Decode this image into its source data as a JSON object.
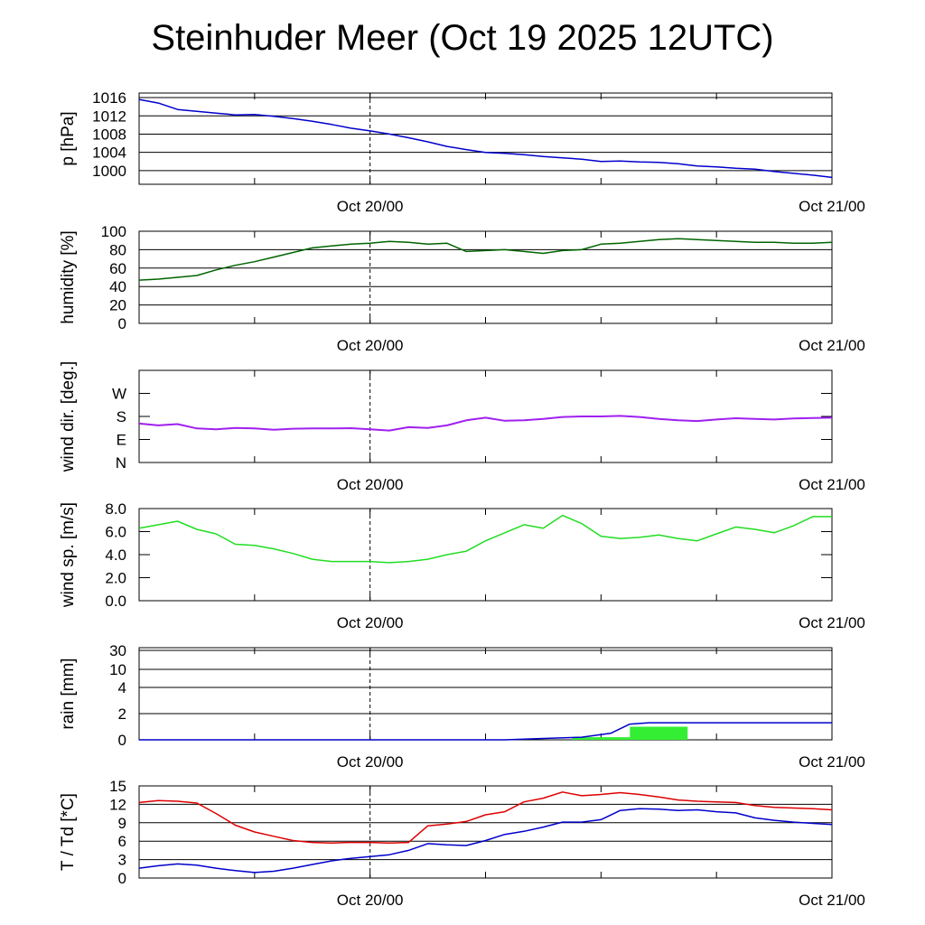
{
  "title": "Steinhuder Meer (Oct 19 2025 12UTC)",
  "colors": {
    "pressure": "#0000cc",
    "humidity": "#006400",
    "wind_dir": "#a020f0",
    "wind_speed": "#22dd22",
    "rain_acc": "#0000cc",
    "rain_bar": "#33ee33",
    "temperature": "#dd0000",
    "dewpoint": "#0000cc"
  },
  "chart_data": [
    {
      "type": "line",
      "ylabel": "p [hPa]",
      "x_tick_labels": [
        "Oct 20/00",
        "Oct 21/00"
      ],
      "y_ticks": [
        1000,
        1004,
        1008,
        1012,
        1016
      ],
      "y_tick_labels": [
        "1000",
        "1004",
        "1008",
        "1012",
        "1016"
      ],
      "ylim": [
        997,
        1017
      ],
      "grid": true,
      "series": [
        {
          "x": [
            0,
            1,
            2,
            3,
            4,
            5,
            6,
            7,
            8,
            9,
            10,
            11,
            12,
            13,
            14,
            15,
            16,
            17,
            18,
            19,
            20,
            21,
            22,
            23,
            24,
            25,
            26,
            27,
            28,
            29,
            30,
            31,
            32,
            33,
            34,
            35,
            36
          ],
          "y": [
            1015.6,
            1014.8,
            1013.4,
            1013.0,
            1012.6,
            1012.2,
            1012.3,
            1011.9,
            1011.4,
            1010.8,
            1010.1,
            1009.3,
            1008.7,
            1008.0,
            1007.2,
            1006.3,
            1005.3,
            1004.6,
            1004.0,
            1003.8,
            1003.5,
            1003.1,
            1002.8,
            1002.5,
            1002.0,
            1002.1,
            1001.9,
            1001.8,
            1001.5,
            1001.0,
            1000.8,
            1000.5,
            1000.3,
            999.8,
            999.4,
            999.0,
            998.5
          ]
        }
      ]
    },
    {
      "type": "line",
      "ylabel": "humidity [%]",
      "x_tick_labels": [
        "Oct 20/00",
        "Oct 21/00"
      ],
      "y_ticks": [
        0,
        20,
        40,
        60,
        80,
        100
      ],
      "y_tick_labels": [
        "0",
        "20",
        "40",
        "60",
        "80",
        "100"
      ],
      "ylim": [
        0,
        100
      ],
      "grid": true,
      "series": [
        {
          "x": [
            0,
            1,
            2,
            3,
            4,
            5,
            6,
            7,
            8,
            9,
            10,
            11,
            12,
            13,
            14,
            15,
            16,
            17,
            18,
            19,
            20,
            21,
            22,
            23,
            24,
            25,
            26,
            27,
            28,
            29,
            30,
            31,
            32,
            33,
            34,
            35,
            36
          ],
          "y": [
            47,
            48,
            50,
            52,
            58,
            63,
            67,
            72,
            77,
            82,
            84,
            86,
            87,
            89,
            88,
            86,
            87,
            78,
            79,
            80,
            78,
            76,
            79,
            80,
            86,
            87,
            89,
            91,
            92,
            91,
            90,
            89,
            88,
            88,
            87,
            87,
            88
          ]
        }
      ]
    },
    {
      "type": "line",
      "ylabel": "wind dir. [deg.]",
      "x_tick_labels": [
        "Oct 20/00",
        "Oct 21/00"
      ],
      "y_ticks": [
        0,
        90,
        180,
        270
      ],
      "y_tick_labels": [
        "N",
        "E",
        "S",
        "W"
      ],
      "ylim": [
        0,
        360
      ],
      "grid": false,
      "series": [
        {
          "x": [
            0,
            1,
            2,
            3,
            4,
            5,
            6,
            7,
            8,
            9,
            10,
            11,
            12,
            13,
            14,
            15,
            16,
            17,
            18,
            19,
            20,
            21,
            22,
            23,
            24,
            25,
            26,
            27,
            28,
            29,
            30,
            31,
            32,
            33,
            34,
            35,
            36
          ],
          "y": [
            152,
            145,
            150,
            133,
            130,
            135,
            133,
            128,
            132,
            133,
            133,
            134,
            130,
            125,
            138,
            135,
            145,
            165,
            175,
            163,
            165,
            170,
            178,
            180,
            180,
            182,
            178,
            170,
            165,
            162,
            168,
            173,
            170,
            168,
            172,
            174,
            175
          ]
        }
      ]
    },
    {
      "type": "line",
      "ylabel": "wind sp. [m/s]",
      "x_tick_labels": [
        "Oct 20/00",
        "Oct 21/00"
      ],
      "y_ticks": [
        0,
        2,
        4,
        6,
        8
      ],
      "y_tick_labels": [
        "0.0",
        "2.0",
        "4.0",
        "6.0",
        "8.0"
      ],
      "ylim": [
        0,
        8
      ],
      "grid": false,
      "series": [
        {
          "x": [
            0,
            1,
            2,
            3,
            4,
            5,
            6,
            7,
            8,
            9,
            10,
            11,
            12,
            13,
            14,
            15,
            16,
            17,
            18,
            19,
            20,
            21,
            22,
            23,
            24,
            25,
            26,
            27,
            28,
            29,
            30,
            31,
            32,
            33,
            34,
            35,
            36
          ],
          "y": [
            6.3,
            6.6,
            6.9,
            6.2,
            5.8,
            4.9,
            4.8,
            4.5,
            4.1,
            3.6,
            3.4,
            3.4,
            3.4,
            3.3,
            3.4,
            3.6,
            4.0,
            4.3,
            5.2,
            5.9,
            6.6,
            6.3,
            7.4,
            6.7,
            5.6,
            5.4,
            5.5,
            5.7,
            5.4,
            5.2,
            5.8,
            6.4,
            6.2,
            5.9,
            6.5,
            7.3,
            7.3
          ]
        }
      ]
    },
    {
      "type": "bar",
      "ylabel": "rain [mm]",
      "x_tick_labels": [
        "Oct 20/00",
        "Oct 21/00"
      ],
      "y_ticks": [
        0,
        2,
        4,
        10,
        30
      ],
      "y_tick_labels": [
        "0",
        "2",
        "4",
        "10",
        "30"
      ],
      "grid": true,
      "bars": [
        {
          "x0": 22.5,
          "x1": 25.5,
          "value": 0.2
        },
        {
          "x0": 25.5,
          "x1": 28.5,
          "value": 1.0
        }
      ],
      "series": [
        {
          "name": "",
          "x": [
            0,
            19,
            21,
            23,
            24.5,
            25.5,
            26.5,
            36
          ],
          "y": [
            0,
            0,
            0.1,
            0.2,
            0.5,
            1.2,
            1.3,
            1.3
          ]
        }
      ]
    },
    {
      "type": "line",
      "ylabel": "T / Td [*C]",
      "x_tick_labels": [
        "Oct 20/00",
        "Oct 21/00"
      ],
      "y_ticks": [
        0,
        3,
        6,
        9,
        12,
        15
      ],
      "y_tick_labels": [
        "0",
        "3",
        "6",
        "9",
        "12",
        "15"
      ],
      "ylim": [
        0,
        15
      ],
      "grid": true,
      "series": [
        {
          "x": [
            0,
            1,
            2,
            3,
            4,
            5,
            6,
            7,
            8,
            9,
            10,
            11,
            12,
            13,
            14,
            15,
            16,
            17,
            18,
            19,
            20,
            21,
            22,
            23,
            24,
            25,
            26,
            27,
            28,
            29,
            30,
            31,
            32,
            33,
            34,
            35,
            36
          ],
          "y": [
            12.3,
            12.6,
            12.5,
            12.2,
            10.5,
            8.6,
            7.5,
            6.8,
            6.1,
            5.8,
            5.7,
            5.8,
            5.8,
            5.7,
            5.8,
            8.5,
            8.8,
            9.2,
            10.3,
            10.8,
            12.4,
            13.0,
            14.0,
            13.4,
            13.6,
            13.9,
            13.6,
            13.2,
            12.7,
            12.5,
            12.4,
            12.3,
            11.8,
            11.5,
            11.4,
            11.3,
            11.1
          ]
        },
        {
          "x": [
            0,
            1,
            2,
            3,
            4,
            5,
            6,
            7,
            8,
            9,
            10,
            11,
            12,
            13,
            14,
            15,
            16,
            17,
            18,
            19,
            20,
            21,
            22,
            23,
            24,
            25,
            26,
            27,
            28,
            29,
            30,
            31,
            32,
            33,
            34,
            35,
            36
          ],
          "y": [
            1.6,
            2.0,
            2.3,
            2.1,
            1.6,
            1.2,
            0.9,
            1.1,
            1.6,
            2.2,
            2.8,
            3.2,
            3.5,
            3.8,
            4.5,
            5.6,
            5.4,
            5.3,
            6.1,
            7.1,
            7.6,
            8.3,
            9.1,
            9.1,
            9.5,
            11.0,
            11.3,
            11.2,
            11.0,
            11.1,
            10.8,
            10.6,
            9.8,
            9.4,
            9.1,
            8.9,
            8.7
          ]
        }
      ]
    }
  ]
}
